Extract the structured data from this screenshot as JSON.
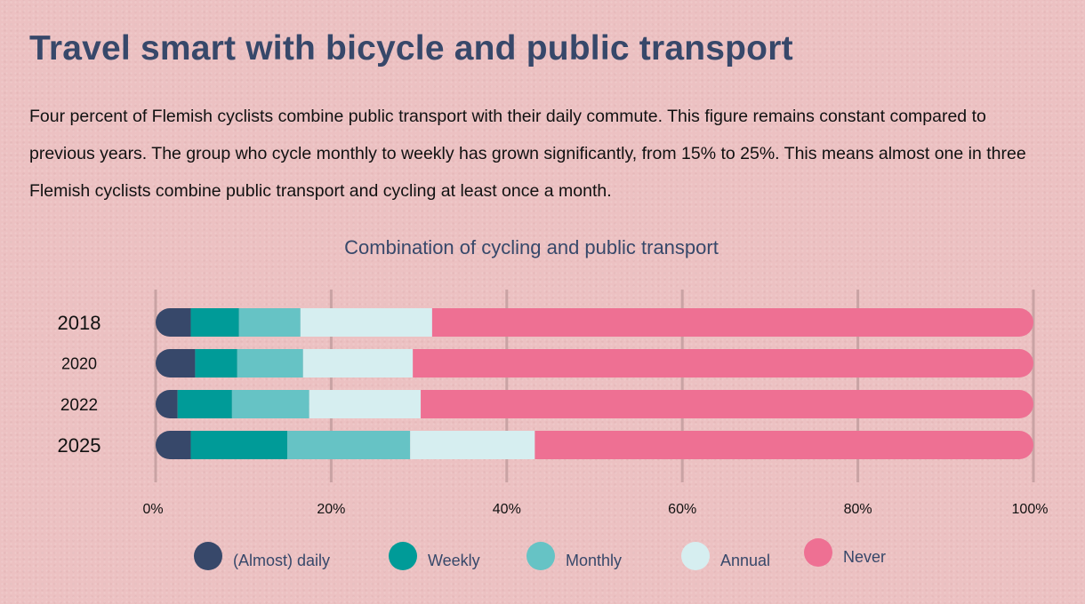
{
  "header": {
    "title": "Travel smart with bicycle and public transport",
    "intro": "Four percent of Flemish cyclists combine public transport with their daily commute. This figure remains constant compared to previous years. The group who cycle monthly to weekly has grown significantly, from 15% to 25%. This means almost one in three Flemish cyclists combine public transport and cycling at least once a month."
  },
  "chart_data": {
    "type": "bar",
    "orientation": "horizontal",
    "stacked": true,
    "title": "Combination of cycling and public transport",
    "xlabel": "",
    "ylabel": "",
    "xlim": [
      0,
      100
    ],
    "grid": true,
    "legend_position": "bottom",
    "categories": [
      "2018",
      "2020",
      "2022",
      "2025"
    ],
    "x_ticks": [
      "0%",
      "20%",
      "40%",
      "60%",
      "80%",
      "100%"
    ],
    "series": [
      {
        "name": "(Almost) daily",
        "color": "#37486a",
        "values": [
          4,
          4.5,
          2.5,
          4
        ]
      },
      {
        "name": "Weekly",
        "color": "#009b98",
        "values": [
          5.5,
          4.8,
          6.2,
          11
        ]
      },
      {
        "name": "Monthly",
        "color": "#66c3c5",
        "values": [
          7,
          7.5,
          8.8,
          14
        ]
      },
      {
        "name": "Annual",
        "color": "#d6eef0",
        "values": [
          15,
          12.5,
          12.7,
          14.2
        ]
      },
      {
        "name": "Never",
        "color": "#ee7093",
        "values": [
          68.5,
          70.7,
          69.8,
          56.8
        ]
      }
    ]
  }
}
